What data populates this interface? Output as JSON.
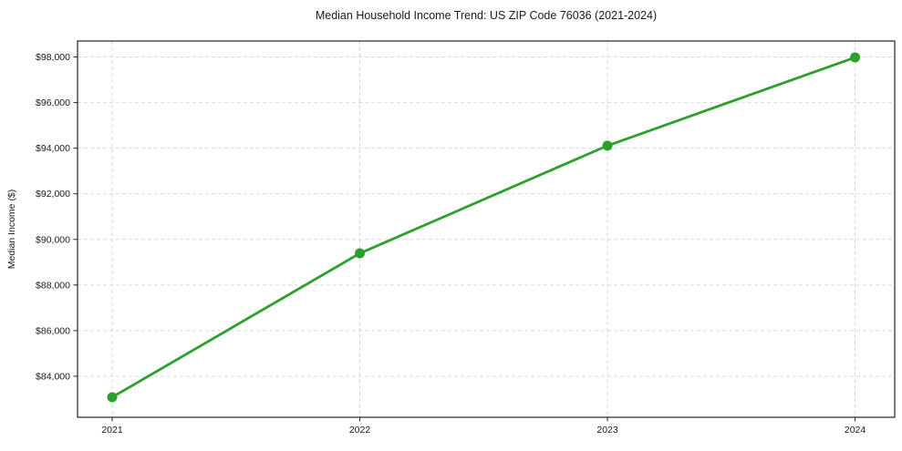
{
  "figure": {
    "background": "#ffffff"
  },
  "chart_data": {
    "type": "line",
    "title": "Median Household Income Trend: US ZIP Code 76036 (2021-2024)",
    "xlabel": "",
    "ylabel": "Median Income ($)",
    "x": [
      2021,
      2022,
      2023,
      2024
    ],
    "xtick_labels": [
      "2021",
      "2022",
      "2023",
      "2024"
    ],
    "values": [
      83080,
      89390,
      94110,
      97980
    ],
    "yticks": [
      84000,
      86000,
      88000,
      90000,
      92000,
      94000,
      96000,
      98000
    ],
    "ytick_labels": [
      "$84,000",
      "$86,000",
      "$88,000",
      "$90,000",
      "$92,000",
      "$94,000",
      "$96,000",
      "$98,000"
    ],
    "xlim": [
      2020.86,
      2024.16
    ],
    "ylim": [
      82200,
      98700
    ],
    "grid": true,
    "grid_style": "dashed",
    "grid_color": "#d9d9d9",
    "line_color": "#2ca02c",
    "marker": "circle",
    "marker_size": 5.5,
    "line_width": 2.8,
    "spine_color": "#262626",
    "text_color": "#1a1a1a",
    "legend": false
  }
}
